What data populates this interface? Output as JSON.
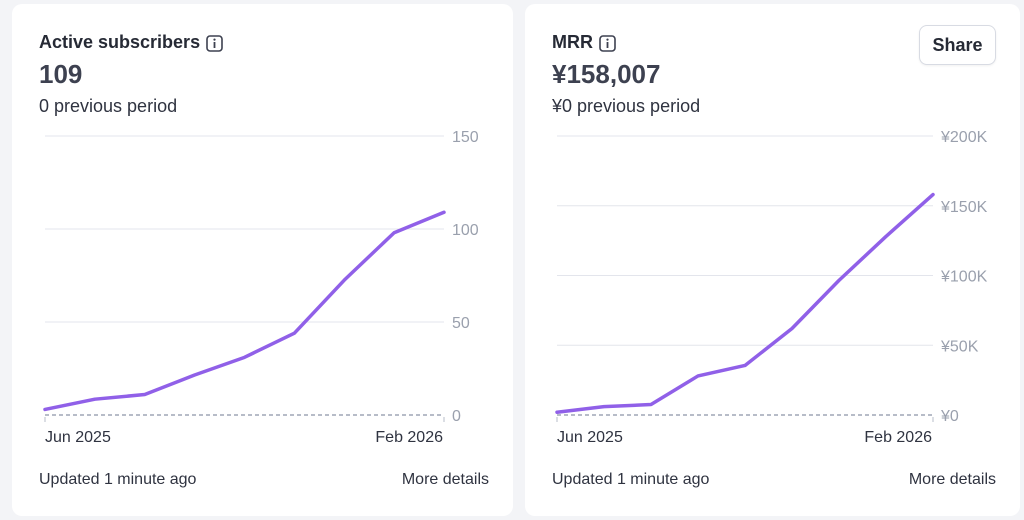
{
  "colors": {
    "line": "#9060e8",
    "grid": "#e3e5ec",
    "baseline": "#b7bcc8"
  },
  "cards": [
    {
      "title": "Active subscribers",
      "info_icon": "info-icon",
      "value": "109",
      "previous": "0 previous period",
      "footer": {
        "updated": "Updated 1 minute ago",
        "details": "More details"
      }
    },
    {
      "title": "MRR",
      "info_icon": "info-icon",
      "value": "¥158,007",
      "previous": "¥0 previous period",
      "share_label": "Share",
      "footer": {
        "updated": "Updated 1 minute ago",
        "details": "More details"
      }
    }
  ],
  "chart_data": [
    {
      "type": "line",
      "x_labels": [
        "Jun 2025",
        "Feb 2026"
      ],
      "y_ticks": [
        0,
        50,
        100,
        150
      ],
      "y_tick_labels": [
        "0",
        "50",
        "100",
        "150"
      ],
      "ylim": [
        0,
        150
      ],
      "y_axis_position": "right",
      "grid": true,
      "series": [
        {
          "values": [
            3,
            8.5,
            11,
            21.5,
            31,
            44,
            72.5,
            98,
            109
          ]
        }
      ],
      "baseline_values": [
        0,
        0,
        0,
        0,
        0,
        0,
        0,
        0,
        0
      ]
    },
    {
      "type": "line",
      "x_labels": [
        "Jun 2025",
        "Feb 2026"
      ],
      "y_ticks": [
        0,
        50000,
        100000,
        150000,
        200000
      ],
      "y_tick_labels": [
        "¥0",
        "¥50K",
        "¥100K",
        "¥150K",
        "¥200K"
      ],
      "ylim": [
        0,
        200000
      ],
      "y_axis_position": "right",
      "grid": true,
      "series": [
        {
          "values": [
            2000,
            6000,
            7500,
            28000,
            35500,
            62000,
            96500,
            128000,
            158007
          ]
        }
      ],
      "baseline_values": [
        0,
        0,
        0,
        0,
        0,
        0,
        0,
        0,
        0
      ]
    }
  ]
}
